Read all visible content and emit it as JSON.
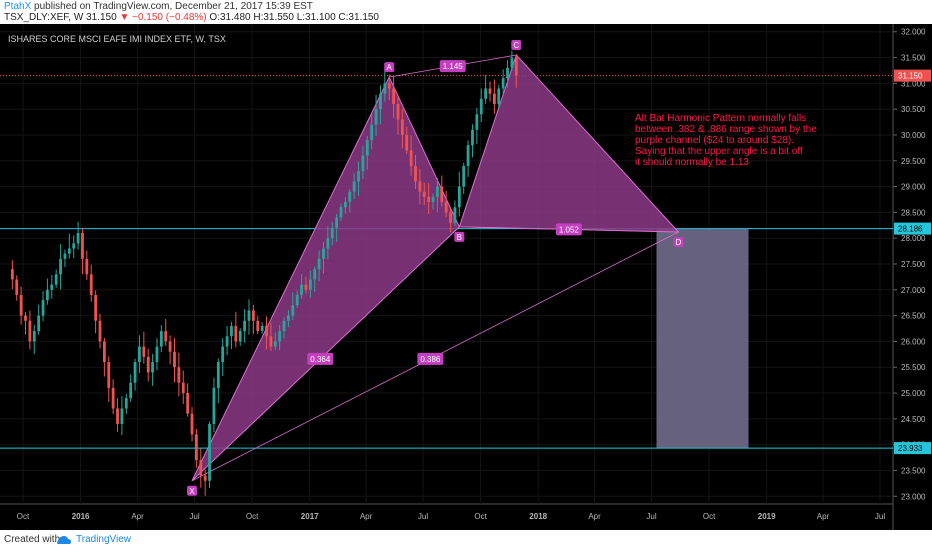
{
  "header": {
    "author": "PtahX",
    "published": "published on TradingView.com, December 21, 2017 15:39 EST",
    "symbol": "TSX_DLY:XEF, W",
    "last": "31.150",
    "change": "▼ −0.150 (−0.48%)",
    "ohlc": "O:31.480 H:31.550 L:31.100 C:31.150"
  },
  "footer": {
    "created_with": "Created with",
    "brand": "TradingView"
  },
  "colors": {
    "background": "#000000",
    "up": "#26a69a",
    "down": "#ef5350",
    "pattern_fill": "#8c3a86",
    "pattern_line": "#d96fd1",
    "cyan": "#26c6da",
    "note_text": "#ff1744",
    "target_box": "#6f6a88"
  },
  "chart_data": {
    "type": "candlestick",
    "title": "ISHARES CORE MSCI EAFE IMI INDEX ETF, W, TSX",
    "x_ticks": [
      "Oct",
      "2016",
      "Apr",
      "Jul",
      "Oct",
      "2017",
      "Apr",
      "Jul",
      "Oct",
      "2018",
      "Apr",
      "Jul",
      "Oct",
      "2019",
      "Apr",
      "Jul"
    ],
    "y_ticks": [
      "23.000",
      "23.500",
      "24.000",
      "24.500",
      "25.000",
      "25.500",
      "26.000",
      "26.500",
      "27.000",
      "27.500",
      "28.000",
      "28.500",
      "29.000",
      "29.500",
      "30.000",
      "30.500",
      "31.000",
      "31.500",
      "32.000"
    ],
    "ylim": [
      22.85,
      32.15
    ],
    "last_price_label": "31.150",
    "horizontal_lines": [
      {
        "value": 28.186,
        "label": "28.186",
        "color": "cyan"
      },
      {
        "value": 23.933,
        "label": "23.933",
        "color": "cyan"
      },
      {
        "value": 31.15,
        "label": null,
        "color": "red-dotted"
      }
    ],
    "weekly_close_approx": [
      27.2,
      26.9,
      26.5,
      26.4,
      26.0,
      26.2,
      26.5,
      26.8,
      27.0,
      27.1,
      27.3,
      27.6,
      27.7,
      27.8,
      27.9,
      28.1,
      27.6,
      27.3,
      26.9,
      26.4,
      26.0,
      25.6,
      25.1,
      24.7,
      24.4,
      24.7,
      24.9,
      25.2,
      25.6,
      25.9,
      25.7,
      25.4,
      25.6,
      25.9,
      26.2,
      26.0,
      25.8,
      25.5,
      25.2,
      25.0,
      24.6,
      24.2,
      23.7,
      23.4,
      23.3,
      24.4,
      25.1,
      25.6,
      25.9,
      26.1,
      26.3,
      26.0,
      26.2,
      26.4,
      26.6,
      26.4,
      26.2,
      26.3,
      26.1,
      25.9,
      26.0,
      26.2,
      26.4,
      26.5,
      26.7,
      26.9,
      27.1,
      27.0,
      27.2,
      27.4,
      27.6,
      27.8,
      28.0,
      28.2,
      28.4,
      28.6,
      28.7,
      28.9,
      29.1,
      29.3,
      29.6,
      29.9,
      30.2,
      30.5,
      30.8,
      31.0,
      30.9,
      30.6,
      30.3,
      30.0,
      29.7,
      29.4,
      29.1,
      28.9,
      28.8,
      28.7,
      28.8,
      29.0,
      28.7,
      28.5,
      28.3,
      28.6,
      29.0,
      29.4,
      29.8,
      30.1,
      30.4,
      30.7,
      30.9,
      30.8,
      30.6,
      30.9,
      31.1,
      31.3,
      31.5,
      31.15
    ],
    "pattern": {
      "name": "Alt Bat Harmonic Pattern",
      "points": [
        {
          "label": "X",
          "date": "2016-06-27",
          "value": 23.3
        },
        {
          "label": "A",
          "date": "2017-05-08",
          "value": 31.12
        },
        {
          "label": "B",
          "date": "2017-08-28",
          "value": 28.22
        },
        {
          "label": "C",
          "date": "2017-11-27",
          "value": 31.55
        },
        {
          "label": "D",
          "date": "2018-08-13",
          "value": 28.12
        }
      ],
      "ratios": [
        {
          "label": "1.145",
          "between": "A-C"
        },
        {
          "label": "1.052",
          "between": "B-D"
        },
        {
          "label": "0.364",
          "between": "X-B"
        },
        {
          "label": "0.386",
          "between": "X-D"
        }
      ]
    },
    "target_zone": {
      "from": "2018-07-09",
      "to": "2018-12-03",
      "low": 23.933,
      "high": 28.186
    },
    "annotation": "Alt Bat Harmonic Pattern normally falls between .382 & .886 range shown by the purple channel ($24 to around $28). Saying that the upper angle is a bit off it should normally be 1.13"
  }
}
